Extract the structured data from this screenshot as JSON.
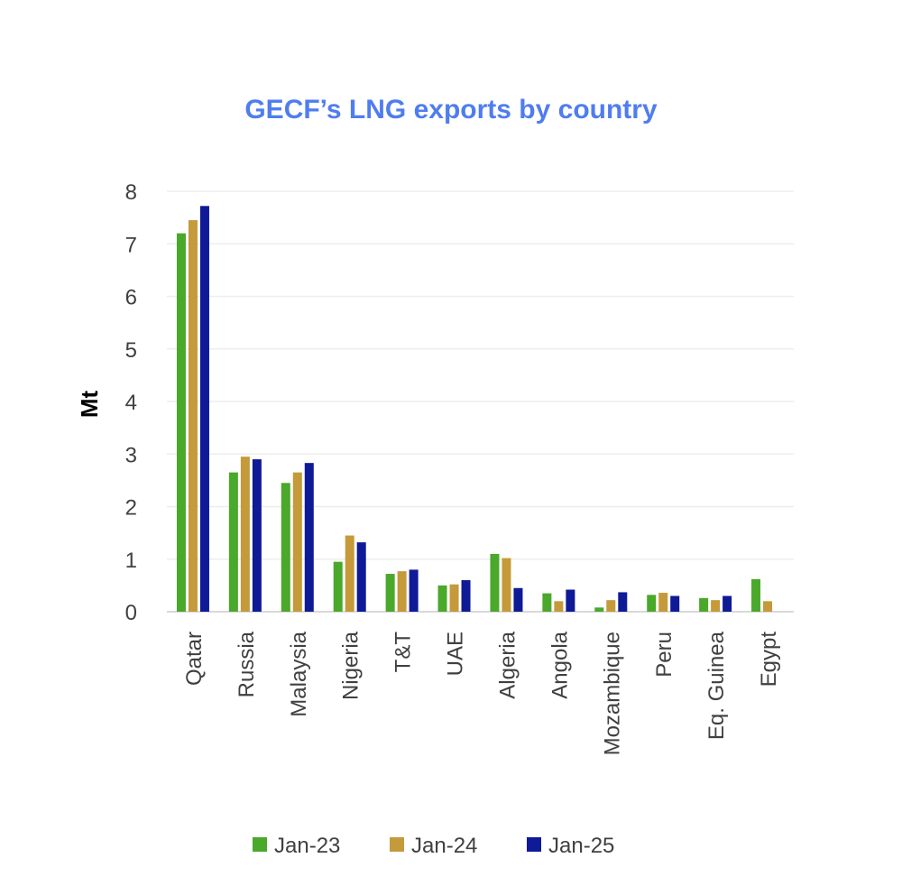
{
  "chart_data": {
    "type": "bar",
    "title": "GECF’s LNG exports by country",
    "xlabel": "",
    "ylabel": "Mt",
    "ylim": [
      0,
      8
    ],
    "yticks": [
      0,
      1,
      2,
      3,
      4,
      5,
      6,
      7,
      8
    ],
    "grid": true,
    "legend_position": "bottom",
    "categories": [
      "Qatar",
      "Russia",
      "Malaysia",
      "Nigeria",
      "T&T",
      "UAE",
      "Algeria",
      "Angola",
      "Mozambique",
      "Peru",
      "Eq. Guinea",
      "Egypt"
    ],
    "series": [
      {
        "name": "Jan-23",
        "color": "#4aa82a",
        "values": [
          7.2,
          2.65,
          2.45,
          0.95,
          0.72,
          0.5,
          1.1,
          0.35,
          0.08,
          0.32,
          0.26,
          0.62
        ]
      },
      {
        "name": "Jan-24",
        "color": "#c49a3a",
        "values": [
          7.45,
          2.95,
          2.65,
          1.45,
          0.77,
          0.52,
          1.02,
          0.2,
          0.22,
          0.36,
          0.22,
          0.2
        ]
      },
      {
        "name": "Jan-25",
        "color": "#0e1a96",
        "values": [
          7.72,
          2.9,
          2.83,
          1.32,
          0.8,
          0.6,
          0.45,
          0.42,
          0.37,
          0.3,
          0.3,
          0.0
        ]
      }
    ]
  }
}
